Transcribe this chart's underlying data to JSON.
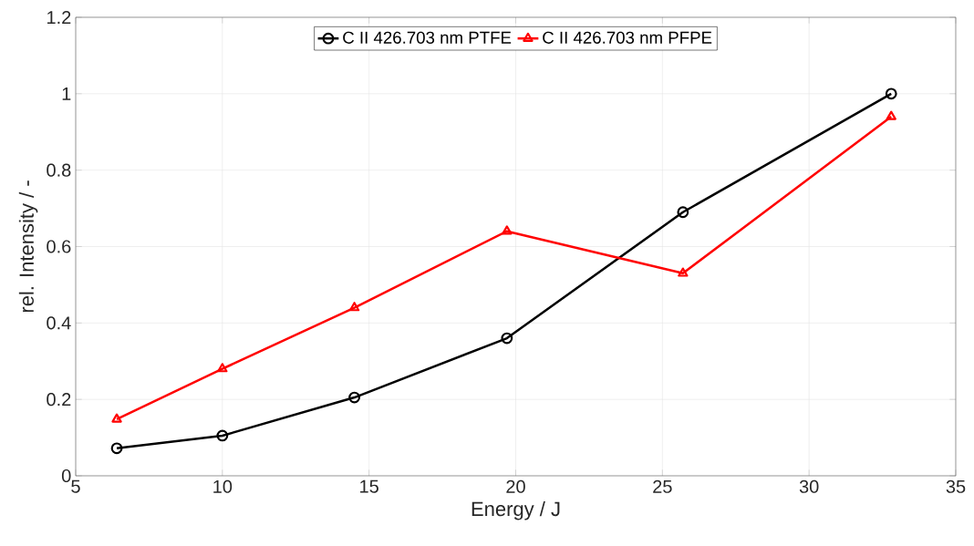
{
  "chart_data": {
    "type": "line",
    "xlabel": "Energy / J",
    "ylabel": "rel. Intensity / -",
    "x": [
      6.4,
      10.0,
      14.5,
      19.7,
      25.7,
      32.8
    ],
    "series": [
      {
        "name": "C II 426.703 nm PTFE",
        "color": "#000000",
        "marker": "circle",
        "values": [
          0.072,
          0.105,
          0.205,
          0.36,
          0.69,
          1.0
        ]
      },
      {
        "name": "C II 426.703 nm PFPE",
        "color": "#ff0000",
        "marker": "triangle",
        "values": [
          0.148,
          0.28,
          0.44,
          0.64,
          0.53,
          0.94
        ]
      }
    ],
    "xlim": [
      5,
      35
    ],
    "ylim": [
      0,
      1.2
    ],
    "xticks": [
      5,
      10,
      15,
      20,
      25,
      30,
      35
    ],
    "yticks": [
      0,
      0.2,
      0.4,
      0.6,
      0.8,
      1,
      1.2
    ],
    "grid": true,
    "legend": "top",
    "line_style": "solid"
  }
}
